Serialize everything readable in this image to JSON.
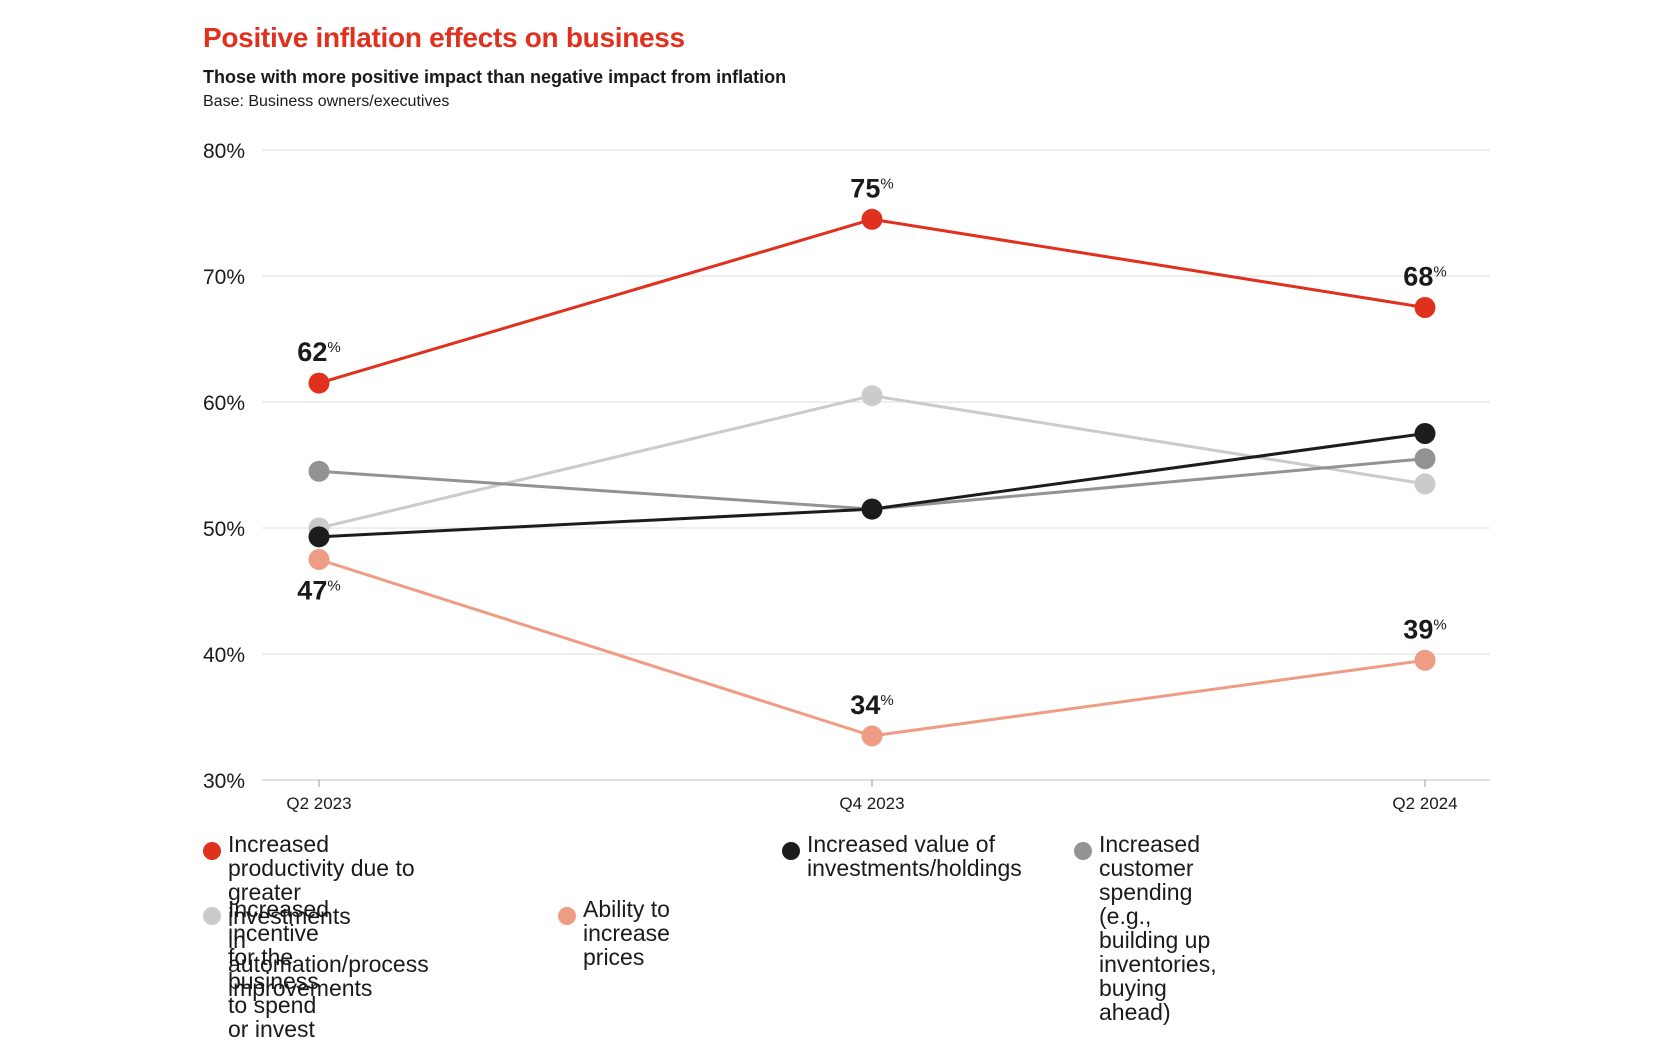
{
  "header": {
    "title": "Positive inflation effects on business",
    "subtitle": "Those with more positive impact than negative impact from inflation",
    "base": "Base: Business owners/executives"
  },
  "chart_data": {
    "type": "line",
    "title": "Positive inflation effects on business",
    "subtitle": "Those with more positive impact than negative impact from inflation",
    "note": "Base: Business owners/executives",
    "x": [
      "Q2 2023",
      "Q4 2023",
      "Q2 2024"
    ],
    "ylim": [
      30,
      80
    ],
    "yticks": [
      "30%",
      "40%",
      "50%",
      "60%",
      "70%",
      "80%"
    ],
    "ytick_values": [
      30,
      40,
      50,
      60,
      70,
      80
    ],
    "grid": true,
    "legend_position": "bottom",
    "series": [
      {
        "name": "Increased productivity due to greater investments\nin automation/process improvements",
        "color": "#e0301e",
        "values": [
          61.5,
          74.5,
          67.5
        ],
        "labels": [
          "62",
          "75",
          "68"
        ]
      },
      {
        "name": "Increased value of\ninvestments/holdings",
        "color": "#1c1c1c",
        "values": [
          49.3,
          51.5,
          57.5
        ]
      },
      {
        "name": "Increased customer spending (e.g.,\nbuilding up inventories, buying ahead)",
        "color": "#939393",
        "values": [
          54.5,
          51.5,
          55.5
        ]
      },
      {
        "name": "Increased incentive for the\nbusiness to spend or invest",
        "color": "#cbcbcb",
        "values": [
          50.0,
          60.5,
          53.5
        ]
      },
      {
        "name": "Ability to\nincrease prices",
        "color": "#ef9c84",
        "values": [
          47.5,
          33.5,
          39.5
        ],
        "labels": [
          "47",
          "34",
          "39"
        ]
      }
    ],
    "label_suffix": "%"
  }
}
